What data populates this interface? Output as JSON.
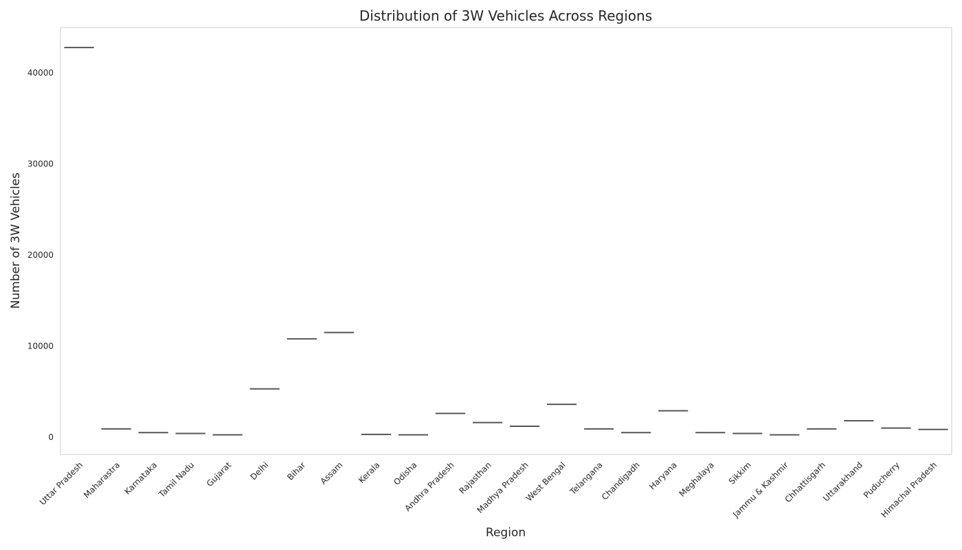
{
  "chart_data": {
    "type": "box",
    "title": "Distribution of 3W Vehicles Across Regions",
    "xlabel": "Region",
    "ylabel": "Number of 3W Vehicles",
    "ylim": [
      -1900,
      45000
    ],
    "yticks": [
      0,
      10000,
      20000,
      30000,
      40000
    ],
    "grid": false,
    "categories": [
      "Uttar Pradesh",
      "Maharastra",
      "Karnataka",
      "Tamil Nadu",
      "Gujarat",
      "Delhi",
      "Bihar",
      "Assam",
      "Kerala",
      "Odisha",
      "Andhra Pradesh",
      "Rajasthan",
      "Madhya Pradesh",
      "West Bengal",
      "Telangana",
      "Chandigadh",
      "Haryana",
      "Meghalaya",
      "Sikkim",
      "Jammu & Kashmir",
      "Chhattisgarh",
      "Uttarakhand",
      "Puducherry",
      "Himachal Pradesh"
    ],
    "values": [
      42800,
      900,
      500,
      400,
      250,
      5300,
      10800,
      11500,
      300,
      250,
      2600,
      1600,
      1200,
      3600,
      900,
      500,
      2900,
      500,
      400,
      250,
      900,
      1800,
      1000,
      850
    ],
    "colors": {
      "box_line": "#555555",
      "axis": "#cccccc",
      "text": "#262626"
    }
  }
}
